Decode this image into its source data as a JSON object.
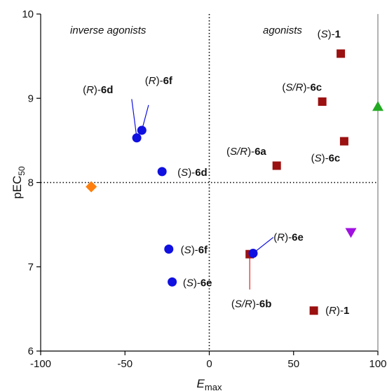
{
  "chart_data": {
    "type": "scatter",
    "xlabel": "Emax",
    "ylabel": "pEC50",
    "xlim": [
      -100,
      100
    ],
    "ylim": [
      6,
      10
    ],
    "xticks": [
      -100,
      -50,
      0,
      50,
      100
    ],
    "yticks": [
      6,
      7,
      8,
      9,
      10
    ],
    "xtick_labels": [
      "-100",
      "-50",
      "0",
      "50",
      "100"
    ],
    "ytick_labels": [
      "6",
      "7",
      "8",
      "9",
      "10"
    ],
    "reference_lines": {
      "x": 0,
      "y": 8,
      "style": "dotted"
    },
    "region_labels": {
      "left": "inverse agonists",
      "right": "agonists"
    },
    "grid": false,
    "points": [
      {
        "x": 78,
        "y": 9.53,
        "shape": "square",
        "color": "#9b1010"
      },
      {
        "x": 67,
        "y": 8.96,
        "shape": "square",
        "color": "#9b1010"
      },
      {
        "x": 80,
        "y": 8.49,
        "shape": "square",
        "color": "#9b1010"
      },
      {
        "x": 40,
        "y": 8.2,
        "shape": "square",
        "color": "#9b1010"
      },
      {
        "x": 24,
        "y": 7.15,
        "shape": "square",
        "color": "#9b1010"
      },
      {
        "x": 62,
        "y": 6.48,
        "shape": "square",
        "color": "#9b1010"
      },
      {
        "x": -43,
        "y": 8.53,
        "shape": "circle",
        "color": "#1010e0"
      },
      {
        "x": -40,
        "y": 8.62,
        "shape": "circle",
        "color": "#1010e0"
      },
      {
        "x": -28,
        "y": 8.13,
        "shape": "circle",
        "color": "#1010e0"
      },
      {
        "x": -24,
        "y": 7.21,
        "shape": "circle",
        "color": "#1010e0"
      },
      {
        "x": -22,
        "y": 6.82,
        "shape": "circle",
        "color": "#1010e0"
      },
      {
        "x": 26,
        "y": 7.16,
        "shape": "circle",
        "color": "#1010e0"
      },
      {
        "x": 100,
        "y": 8.9,
        "shape": "triangle-up",
        "color": "#22aa22"
      },
      {
        "x": 84,
        "y": 7.41,
        "shape": "triangle-down",
        "color": "#a010e0"
      },
      {
        "x": -70,
        "y": 7.95,
        "shape": "diamond",
        "color": "#ff7f0e"
      }
    ],
    "annotations": [
      {
        "parts": [
          [
            "(",
            ""
          ],
          [
            "S",
            "i"
          ],
          [
            ")-",
            ""
          ],
          [
            "1",
            "b"
          ]
        ],
        "x": 71,
        "y": 9.72
      },
      {
        "parts": [
          [
            "(",
            ""
          ],
          [
            "S/R",
            "i"
          ],
          [
            ")-",
            ""
          ],
          [
            "6c",
            "b"
          ]
        ],
        "x": 55,
        "y": 9.09
      },
      {
        "parts": [
          [
            "(",
            ""
          ],
          [
            "S",
            "i"
          ],
          [
            ")-",
            ""
          ],
          [
            "6c",
            "b"
          ]
        ],
        "x": 69,
        "y": 8.25
      },
      {
        "parts": [
          [
            "(",
            ""
          ],
          [
            "S/R",
            "i"
          ],
          [
            ")-",
            ""
          ],
          [
            "6a",
            "b"
          ]
        ],
        "x": 22,
        "y": 8.33
      },
      {
        "parts": [
          [
            "(",
            ""
          ],
          [
            "R",
            "i"
          ],
          [
            ")-",
            ""
          ],
          [
            "6e",
            "b"
          ]
        ],
        "x": 47,
        "y": 7.31
      },
      {
        "parts": [
          [
            "(",
            ""
          ],
          [
            "S/R",
            "i"
          ],
          [
            ")-",
            ""
          ],
          [
            "6b",
            "b"
          ]
        ],
        "x": 25,
        "y": 6.52
      },
      {
        "parts": [
          [
            "(",
            ""
          ],
          [
            "R",
            "i"
          ],
          [
            ")-",
            ""
          ],
          [
            "1",
            "b"
          ]
        ],
        "x": 76,
        "y": 6.44
      },
      {
        "parts": [
          [
            "(",
            ""
          ],
          [
            "R",
            "i"
          ],
          [
            ")-",
            ""
          ],
          [
            "6d",
            "b"
          ]
        ],
        "x": -66,
        "y": 9.06
      },
      {
        "parts": [
          [
            "(",
            ""
          ],
          [
            "R",
            "i"
          ],
          [
            ")-",
            ""
          ],
          [
            "6f",
            "b"
          ]
        ],
        "x": -30,
        "y": 9.17
      },
      {
        "parts": [
          [
            "(",
            ""
          ],
          [
            "S",
            "i"
          ],
          [
            ")-",
            ""
          ],
          [
            "6d",
            "b"
          ]
        ],
        "x": -10,
        "y": 8.08
      },
      {
        "parts": [
          [
            "(",
            ""
          ],
          [
            "S",
            "i"
          ],
          [
            ")-",
            ""
          ],
          [
            "6f",
            "b"
          ]
        ],
        "x": -9,
        "y": 7.16
      },
      {
        "parts": [
          [
            "(",
            ""
          ],
          [
            "S",
            "i"
          ],
          [
            ")-",
            ""
          ],
          [
            "6e",
            "b"
          ]
        ],
        "x": -7,
        "y": 6.77
      }
    ],
    "leader_lines": [
      {
        "color": "#1010e0",
        "from": [
          -46,
          8.99
        ],
        "to": [
          -43,
          8.53
        ]
      },
      {
        "color": "#1010e0",
        "from": [
          -36,
          8.92
        ],
        "to": [
          -40,
          8.62
        ]
      },
      {
        "color": "#1010e0",
        "from": [
          38,
          7.35
        ],
        "to": [
          26,
          7.16
        ]
      },
      {
        "color": "#e02020",
        "from": [
          24,
          6.73
        ],
        "to": [
          24,
          7.15
        ]
      }
    ]
  }
}
